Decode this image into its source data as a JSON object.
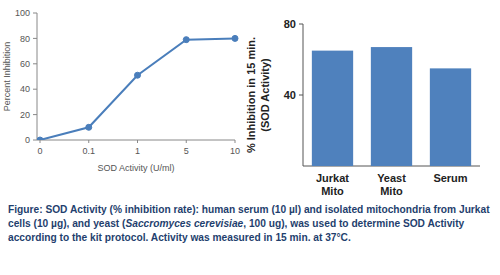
{
  "chart_data": [
    {
      "type": "line",
      "x_label": "SOD Activity (U/ml)",
      "y_label": "Percent Inhibition",
      "categories": [
        "0",
        "0.1",
        "1",
        "5",
        "10"
      ],
      "values": [
        0,
        10,
        51,
        79,
        80
      ],
      "color": "#4a7ebb",
      "marker": "circle",
      "ylim": [
        0,
        100
      ],
      "yticks": [
        0,
        20,
        40,
        60,
        80,
        100
      ],
      "grid": false
    },
    {
      "type": "bar",
      "y_label": [
        "% Inhibition  in 15 min.",
        "(SOD Activity)"
      ],
      "categories": [
        "Jurkat Mito",
        "Yeast Mito",
        "Serum"
      ],
      "values": [
        65,
        67,
        55
      ],
      "color": "#4f81bd",
      "ylim": [
        0,
        80
      ],
      "yticks": [
        40,
        80
      ],
      "grid": false
    }
  ],
  "caption": {
    "label": "Figure:",
    "parts": [
      "SOD Activity (% inhibition rate): human serum (10 µl) and isolated mitochondria from Jurkat cells (10 µg), and yeast (",
      "Saccromyces cerevisiae",
      ", 100 ug), was used to determine SOD Activity according to the kit protocol. Activity was measured in 15 min. at 37°C."
    ]
  }
}
